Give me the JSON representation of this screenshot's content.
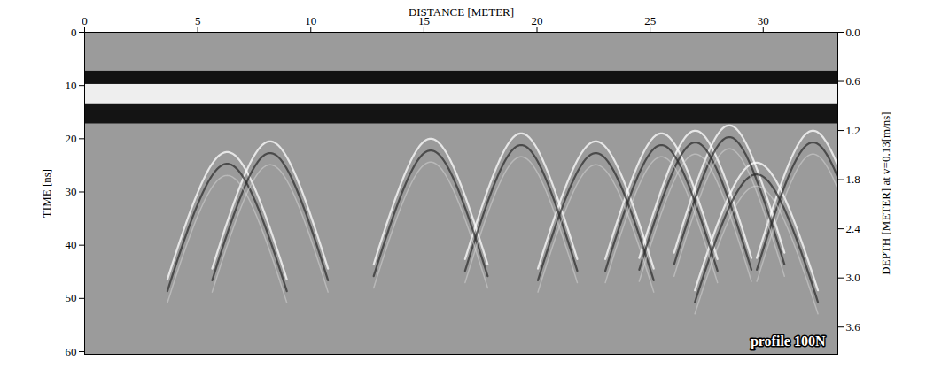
{
  "chart_data": {
    "type": "radargram",
    "annotation": "profile 100N",
    "x_label": "DISTANCE [METER]",
    "y_label": "TIME [ns]",
    "y2_label": "DEPTH [METER] at v=0.13[m/ns]",
    "velocity": 0.13,
    "xlim": [
      0,
      33.3
    ],
    "xticks": [
      0,
      5,
      10,
      15,
      20,
      25,
      30
    ],
    "ylim": [
      0,
      60.5
    ],
    "yticks": [
      0,
      10,
      20,
      30,
      40,
      50,
      60
    ],
    "y2lim": [
      0,
      3.9325
    ],
    "y2ticks": [
      {
        "value": 0,
        "label": "0.0"
      },
      0.6,
      1.2,
      1.8,
      2.4,
      {
        "value": 3,
        "label": "3.0"
      },
      3.6
    ],
    "bands": [
      {
        "from": 7.3,
        "to": 9.8,
        "color": "#111111"
      },
      {
        "from": 9.8,
        "to": 13.6,
        "color": "#eeeeee"
      },
      {
        "from": 13.6,
        "to": 17.2,
        "color": "#141414"
      }
    ],
    "hyperbolas": [
      {
        "x": 6.3,
        "time": 22.5
      },
      {
        "x": 8.2,
        "time": 20.5
      },
      {
        "x": 15.3,
        "time": 20.0
      },
      {
        "x": 19.3,
        "time": 19.0
      },
      {
        "x": 22.6,
        "time": 20.5
      },
      {
        "x": 25.5,
        "time": 19.0
      },
      {
        "x": 27.0,
        "time": 18.5
      },
      {
        "x": 28.5,
        "time": 17.5
      },
      {
        "x": 29.7,
        "time": 24.5
      },
      {
        "x": 32.2,
        "time": 18.5
      }
    ]
  }
}
